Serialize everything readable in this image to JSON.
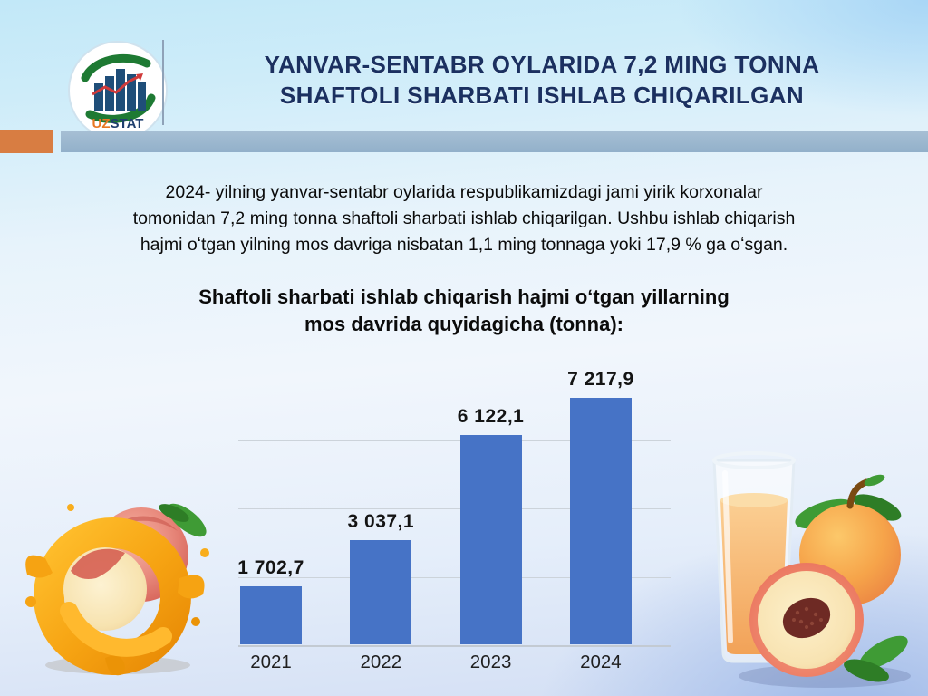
{
  "header": {
    "logo": {
      "uz": "UZ",
      "stat": "STAT"
    },
    "title_lines": [
      "YANVAR-SENTABR OYLARIDA 7,2 MING TONNA",
      "SHAFTOLI SHARBATI ISHLAB CHIQARILGAN"
    ]
  },
  "intro": {
    "lines": [
      "2024- yilning yanvar-sentabr oylarida respublikamizdagi jami yirik korxonalar",
      "tomonidan 7,2 ming tonna shaftoli sharbati ishlab chiqarilgan. Ushbu ishlab chiqarish",
      "hajmi oʻtgan yilning mos davriga nisbatan 1,1 ming tonnaga yoki 17,9 % ga oʻsgan."
    ]
  },
  "chart_heading_lines": [
    "Shaftoli sharbati ishlab chiqarish hajmi oʻtgan yillarning",
    "mos davrida quyidagicha (tonna):"
  ],
  "chart_data": {
    "type": "bar",
    "title": "Shaftoli sharbati ishlab chiqarish hajmi oʻtgan yillarning mos davrida quyidagicha (tonna):",
    "categories": [
      "2021",
      "2022",
      "2023",
      "2024"
    ],
    "values": [
      1702.7,
      3037.1,
      6122.1,
      7217.9
    ],
    "value_labels": [
      "1 702,7",
      "3 037,1",
      "6 122,1",
      "7 217,9"
    ],
    "xlabel": "",
    "ylabel": "tonna",
    "ylim": [
      0,
      8000
    ],
    "gridline_step": 2000,
    "grid": true,
    "legend": false,
    "bar_color": "#4673c6"
  },
  "colors": {
    "title_navy": "#1b3060",
    "divider_orange": "#d87d42",
    "divider_bluegray": "#97b3cc",
    "bar_blue": "#4673c6",
    "logo_green": "#1e7a33",
    "logo_navy": "#1f3f6e",
    "logo_orange": "#e87722",
    "logo_red": "#d03a3a"
  }
}
